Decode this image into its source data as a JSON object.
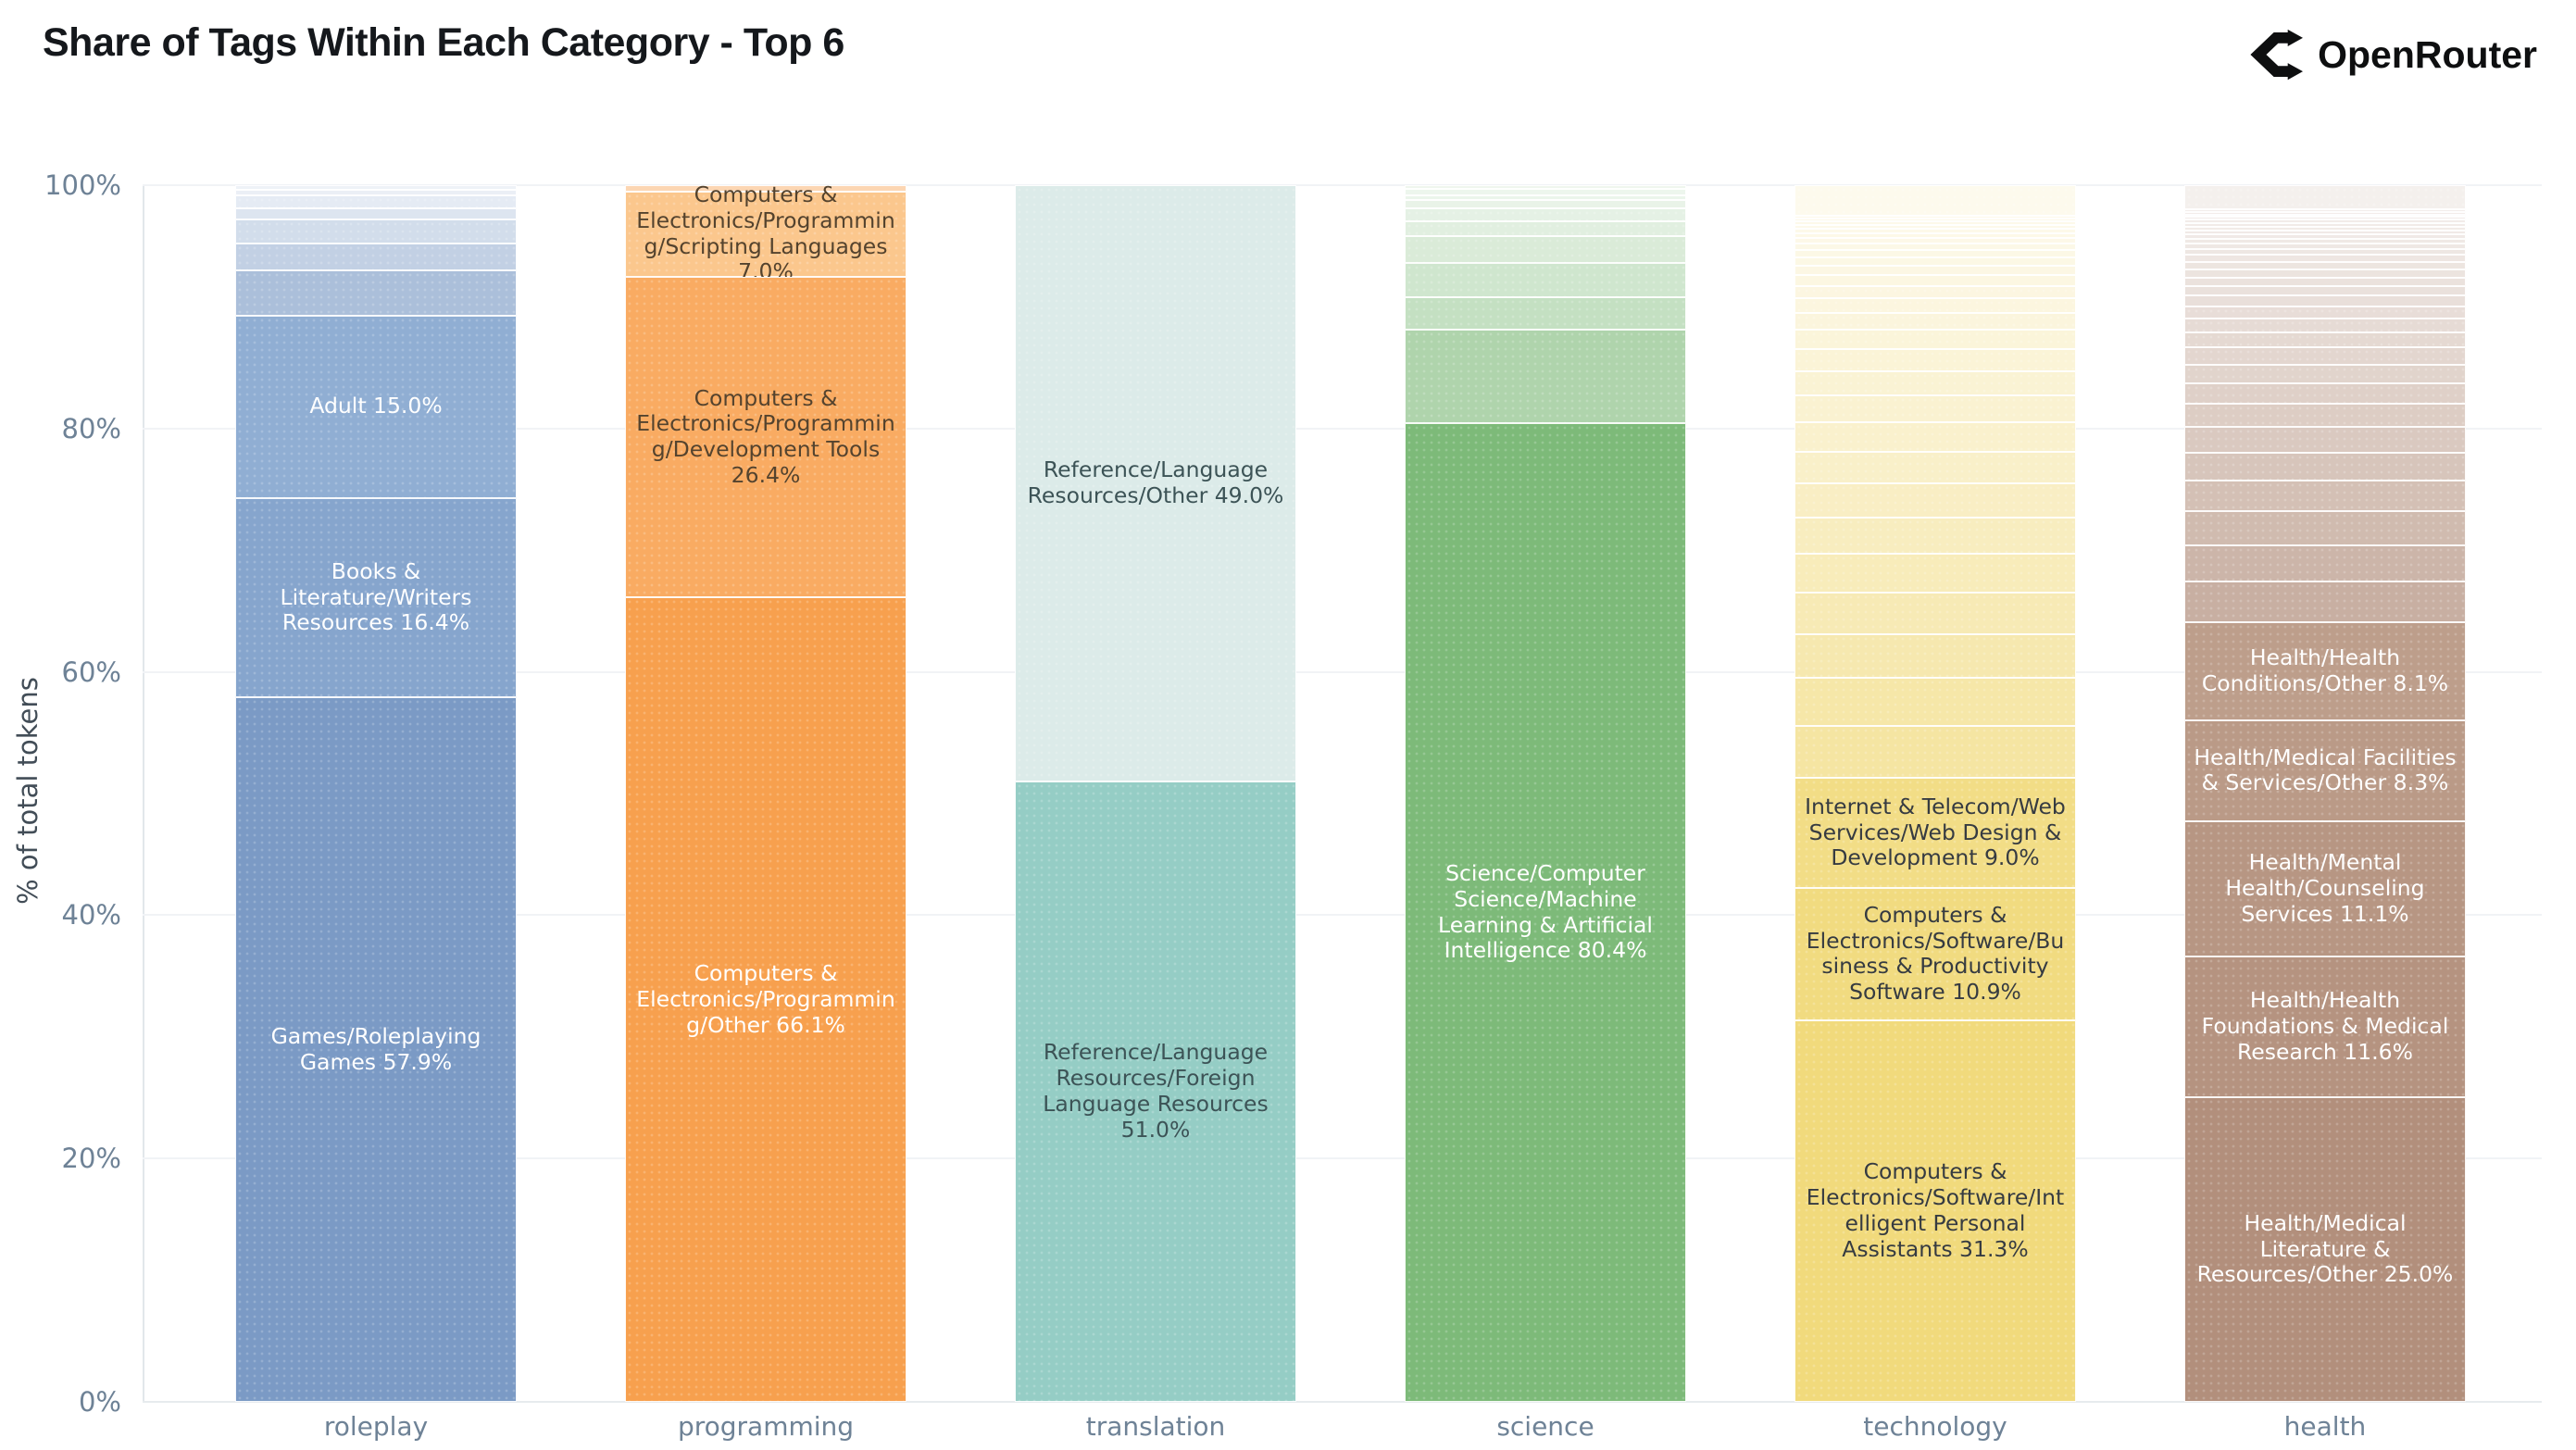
{
  "header": {
    "title": "Share of Tags Within Each Category - Top 6",
    "brand": "OpenRouter"
  },
  "chart_data": {
    "type": "bar",
    "stacked": true,
    "percent_of_total": true,
    "title": "Share of Tags Within Each Category - Top 6",
    "xlabel": "",
    "ylabel": "% of total tokens",
    "ylim": [
      0,
      100
    ],
    "yticks": [
      "0%",
      "20%",
      "40%",
      "60%",
      "80%",
      "100%"
    ],
    "grid": "horizontal",
    "legend": "none",
    "categories": [
      "roleplay",
      "programming",
      "translation",
      "science",
      "technology",
      "health"
    ],
    "bars": [
      {
        "category": "roleplay",
        "base_color": "#7b9ac5",
        "segments_top_to_bottom": [
          {
            "name": "",
            "value": 0.4
          },
          {
            "name": "",
            "value": 0.4
          },
          {
            "name": "",
            "value": 1.1
          },
          {
            "name": "",
            "value": 0.9
          },
          {
            "name": "",
            "value": 2.0
          },
          {
            "name": "",
            "value": 2.2
          },
          {
            "name": "",
            "value": 3.7
          },
          {
            "name": "Adult",
            "value": 15.0,
            "color": "#90aed3",
            "text": "#ffffff"
          },
          {
            "name": "Books & Literature/Writers Resources",
            "value": 16.4,
            "color": "#86a5cd",
            "text": "#ffffff"
          },
          {
            "name": "Games/Roleplaying Games",
            "value": 57.9,
            "color": "#7b9ac5",
            "text": "#ffffff"
          }
        ]
      },
      {
        "category": "programming",
        "base_color": "#f7a04e",
        "segments_top_to_bottom": [
          {
            "name": "",
            "value": 0.5
          },
          {
            "name": "Computers & Electronics/Programming/Scripting Languages",
            "value": 7.0,
            "color": "#fbc78d",
            "text": "#54432e"
          },
          {
            "name": "Computers & Electronics/Programming/Development Tools",
            "value": 26.4,
            "color": "#f9ab62",
            "text": "#54432e"
          },
          {
            "name": "Computers & Electronics/Programming/Other",
            "value": 66.1,
            "color": "#f7a04e",
            "text": "#ffffff"
          }
        ]
      },
      {
        "category": "translation",
        "base_color": "#95cdc5",
        "segments_top_to_bottom": [
          {
            "name": "Reference/Language Resources/Other",
            "value": 49.0,
            "color": "#dcebe9",
            "text": "#3c5356"
          },
          {
            "name": "Reference/Language Resources/Foreign Language Resources",
            "value": 51.0,
            "color": "#95cdc5",
            "text": "#3c5356"
          }
        ]
      },
      {
        "category": "science",
        "base_color": "#7dba79",
        "segments_top_to_bottom": [
          {
            "name": "",
            "value": 0.3
          },
          {
            "name": "",
            "value": 0.5
          },
          {
            "name": "",
            "value": 0.4
          },
          {
            "name": "",
            "value": 0.7
          },
          {
            "name": "",
            "value": 1.1
          },
          {
            "name": "",
            "value": 1.2
          },
          {
            "name": "",
            "value": 2.2
          },
          {
            "name": "",
            "value": 2.8
          },
          {
            "name": "",
            "value": 2.7
          },
          {
            "name": "",
            "value": 7.7
          },
          {
            "name": "Science/Computer Science/Machine Learning & Artificial Intelligence",
            "value": 80.4,
            "color": "#7dba79",
            "text": "#ffffff"
          }
        ]
      },
      {
        "category": "technology",
        "base_color": "#f1da7c",
        "segments_top_to_bottom": [
          {
            "name": "",
            "value": 2.5
          },
          {
            "name": "",
            "value": 0.25
          },
          {
            "name": "",
            "value": 0.25
          },
          {
            "name": "",
            "value": 0.3
          },
          {
            "name": "",
            "value": 0.3
          },
          {
            "name": "",
            "value": 0.35
          },
          {
            "name": "",
            "value": 0.4
          },
          {
            "name": "",
            "value": 0.45
          },
          {
            "name": "",
            "value": 0.5
          },
          {
            "name": "",
            "value": 0.6
          },
          {
            "name": "",
            "value": 0.7
          },
          {
            "name": "",
            "value": 0.8
          },
          {
            "name": "",
            "value": 0.9
          },
          {
            "name": "",
            "value": 1.0
          },
          {
            "name": "",
            "value": 1.2
          },
          {
            "name": "",
            "value": 1.4
          },
          {
            "name": "",
            "value": 1.6
          },
          {
            "name": "",
            "value": 1.8
          },
          {
            "name": "",
            "value": 2.0
          },
          {
            "name": "",
            "value": 2.2
          },
          {
            "name": "",
            "value": 2.4
          },
          {
            "name": "",
            "value": 2.6
          },
          {
            "name": "",
            "value": 2.8
          },
          {
            "name": "",
            "value": 3.0
          },
          {
            "name": "",
            "value": 3.2
          },
          {
            "name": "",
            "value": 3.4
          },
          {
            "name": "",
            "value": 3.6
          },
          {
            "name": "",
            "value": 3.9
          },
          {
            "name": "",
            "value": 4.3
          },
          {
            "name": "Internet & Telecom/Web Services/Web Design & Development",
            "value": 9.0,
            "color": "#f2dd86",
            "text": "#363b41"
          },
          {
            "name": "Computers & Electronics/Software/Business & Productivity Software",
            "value": 10.9,
            "color": "#f1db80",
            "text": "#363b41"
          },
          {
            "name": "Computers & Electronics/Software/Intelligent Personal Assistants",
            "value": 31.3,
            "color": "#f1da7c",
            "text": "#363b41"
          }
        ]
      },
      {
        "category": "health",
        "base_color": "#b28f7c",
        "segments_top_to_bottom": [
          {
            "name": "",
            "value": 2.0
          },
          {
            "name": "",
            "value": 0.2
          },
          {
            "name": "",
            "value": 0.2
          },
          {
            "name": "",
            "value": 0.2
          },
          {
            "name": "",
            "value": 0.25
          },
          {
            "name": "",
            "value": 0.25
          },
          {
            "name": "",
            "value": 0.3
          },
          {
            "name": "",
            "value": 0.3
          },
          {
            "name": "",
            "value": 0.35
          },
          {
            "name": "",
            "value": 0.35
          },
          {
            "name": "",
            "value": 0.4
          },
          {
            "name": "",
            "value": 0.45
          },
          {
            "name": "",
            "value": 0.5
          },
          {
            "name": "",
            "value": 0.55
          },
          {
            "name": "",
            "value": 0.6
          },
          {
            "name": "",
            "value": 0.7
          },
          {
            "name": "",
            "value": 0.7
          },
          {
            "name": "",
            "value": 0.8
          },
          {
            "name": "",
            "value": 0.9
          },
          {
            "name": "",
            "value": 1.0
          },
          {
            "name": "",
            "value": 1.1
          },
          {
            "name": "",
            "value": 1.25
          },
          {
            "name": "",
            "value": 1.4
          },
          {
            "name": "",
            "value": 1.55
          },
          {
            "name": "",
            "value": 1.7
          },
          {
            "name": "",
            "value": 1.9
          },
          {
            "name": "",
            "value": 2.1
          },
          {
            "name": "",
            "value": 2.3
          },
          {
            "name": "",
            "value": 2.5
          },
          {
            "name": "",
            "value": 2.8
          },
          {
            "name": "",
            "value": 3.0
          },
          {
            "name": "",
            "value": 3.3
          },
          {
            "name": "Health/Health Conditions/Other",
            "value": 8.1,
            "color": "#bd9e8b",
            "text": "#ffffff"
          },
          {
            "name": "Health/Medical Facilities & Services/Other",
            "value": 8.3,
            "color": "#ba9a87",
            "text": "#ffffff"
          },
          {
            "name": "Health/Mental Health/Counseling Services",
            "value": 11.1,
            "color": "#b79683",
            "text": "#ffffff"
          },
          {
            "name": "Health/Health Foundations & Medical Research",
            "value": 11.6,
            "color": "#b59380",
            "text": "#ffffff"
          },
          {
            "name": "Health/Medical Literature & Resources/Other",
            "value": 25.0,
            "color": "#b28f7c",
            "text": "#ffffff"
          }
        ]
      }
    ]
  },
  "layout_colors": {
    "tick_label": "#6e8296",
    "axis_title": "#424d57",
    "gridline": "#f1f3f6",
    "title_text": "#15181c"
  }
}
